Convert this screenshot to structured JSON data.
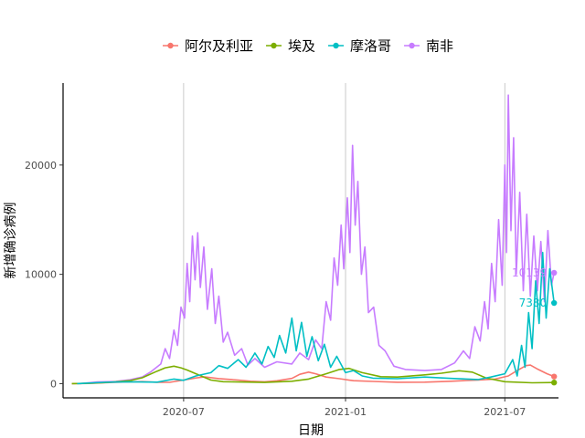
{
  "chart_data": {
    "type": "line",
    "xlabel": "日期",
    "ylabel": "新增确诊病例",
    "x_ticks": [
      "2020-07",
      "2021-01",
      "2021-07"
    ],
    "y_ticks": [
      0,
      10000,
      20000
    ],
    "xlim": [
      "2020-02-15",
      "2021-08-31"
    ],
    "ylim": [
      -1300,
      27500
    ],
    "vertical_gridlines_at": [
      "2020-07-01",
      "2021-01-01",
      "2021-07-01"
    ],
    "legend_position": "top",
    "series": [
      {
        "name": "阿尔及利亚",
        "color": "#F8766D",
        "end_label": "",
        "points": [
          [
            "2020-02-25",
            0
          ],
          [
            "2020-03-15",
            20
          ],
          [
            "2020-04-01",
            80
          ],
          [
            "2020-04-15",
            120
          ],
          [
            "2020-05-01",
            170
          ],
          [
            "2020-05-15",
            190
          ],
          [
            "2020-06-01",
            130
          ],
          [
            "2020-06-15",
            120
          ],
          [
            "2020-07-01",
            330
          ],
          [
            "2020-07-15",
            520
          ],
          [
            "2020-07-25",
            620
          ],
          [
            "2020-08-10",
            460
          ],
          [
            "2020-09-01",
            330
          ],
          [
            "2020-09-15",
            220
          ],
          [
            "2020-10-01",
            170
          ],
          [
            "2020-10-15",
            260
          ],
          [
            "2020-11-01",
            480
          ],
          [
            "2020-11-10",
            850
          ],
          [
            "2020-11-20",
            1050
          ],
          [
            "2020-11-28",
            900
          ],
          [
            "2020-12-10",
            600
          ],
          [
            "2020-12-25",
            450
          ],
          [
            "2021-01-10",
            270
          ],
          [
            "2021-02-01",
            200
          ],
          [
            "2021-03-01",
            130
          ],
          [
            "2021-04-01",
            140
          ],
          [
            "2021-05-01",
            220
          ],
          [
            "2021-06-01",
            340
          ],
          [
            "2021-06-20",
            420
          ],
          [
            "2021-07-05",
            700
          ],
          [
            "2021-07-15",
            1200
          ],
          [
            "2021-07-25",
            1650
          ],
          [
            "2021-07-30",
            1700
          ],
          [
            "2021-08-08",
            1300
          ],
          [
            "2021-08-18",
            900
          ],
          [
            "2021-08-26",
            650
          ]
        ]
      },
      {
        "name": "埃及",
        "color": "#7CAE00",
        "end_label": "",
        "points": [
          [
            "2020-02-25",
            0
          ],
          [
            "2020-03-15",
            30
          ],
          [
            "2020-04-01",
            90
          ],
          [
            "2020-04-15",
            170
          ],
          [
            "2020-05-01",
            280
          ],
          [
            "2020-05-15",
            540
          ],
          [
            "2020-06-01",
            1150
          ],
          [
            "2020-06-10",
            1450
          ],
          [
            "2020-06-20",
            1600
          ],
          [
            "2020-06-28",
            1450
          ],
          [
            "2020-07-05",
            1250
          ],
          [
            "2020-07-15",
            900
          ],
          [
            "2020-08-01",
            330
          ],
          [
            "2020-08-15",
            180
          ],
          [
            "2020-09-01",
            150
          ],
          [
            "2020-10-01",
            110
          ],
          [
            "2020-11-01",
            220
          ],
          [
            "2020-11-20",
            420
          ],
          [
            "2020-12-10",
            900
          ],
          [
            "2020-12-25",
            1300
          ],
          [
            "2021-01-05",
            1400
          ],
          [
            "2021-01-20",
            1000
          ],
          [
            "2021-02-10",
            640
          ],
          [
            "2021-03-01",
            600
          ],
          [
            "2021-04-01",
            800
          ],
          [
            "2021-04-20",
            950
          ],
          [
            "2021-05-10",
            1180
          ],
          [
            "2021-05-25",
            1050
          ],
          [
            "2021-06-10",
            500
          ],
          [
            "2021-07-01",
            180
          ],
          [
            "2021-08-01",
            80
          ],
          [
            "2021-08-26",
            100
          ]
        ]
      },
      {
        "name": "摩洛哥",
        "color": "#00BFC4",
        "end_label": "7380",
        "points": [
          [
            "2020-03-02",
            0
          ],
          [
            "2020-04-01",
            120
          ],
          [
            "2020-05-01",
            170
          ],
          [
            "2020-06-01",
            140
          ],
          [
            "2020-06-20",
            420
          ],
          [
            "2020-07-01",
            300
          ],
          [
            "2020-07-15",
            700
          ],
          [
            "2020-08-01",
            1000
          ],
          [
            "2020-08-10",
            1650
          ],
          [
            "2020-08-20",
            1400
          ],
          [
            "2020-09-01",
            2200
          ],
          [
            "2020-09-10",
            1500
          ],
          [
            "2020-09-20",
            2800
          ],
          [
            "2020-09-28",
            1800
          ],
          [
            "2020-10-05",
            3400
          ],
          [
            "2020-10-12",
            2400
          ],
          [
            "2020-10-18",
            4400
          ],
          [
            "2020-10-25",
            2800
          ],
          [
            "2020-11-01",
            6000
          ],
          [
            "2020-11-06",
            3000
          ],
          [
            "2020-11-12",
            5600
          ],
          [
            "2020-11-18",
            2500
          ],
          [
            "2020-11-24",
            4300
          ],
          [
            "2020-12-01",
            2100
          ],
          [
            "2020-12-08",
            3600
          ],
          [
            "2020-12-15",
            1500
          ],
          [
            "2020-12-22",
            2500
          ],
          [
            "2021-01-01",
            1000
          ],
          [
            "2021-01-10",
            1200
          ],
          [
            "2021-01-20",
            700
          ],
          [
            "2021-02-01",
            500
          ],
          [
            "2021-03-01",
            450
          ],
          [
            "2021-04-01",
            600
          ],
          [
            "2021-05-01",
            480
          ],
          [
            "2021-06-01",
            380
          ],
          [
            "2021-06-15",
            600
          ],
          [
            "2021-07-01",
            900
          ],
          [
            "2021-07-10",
            2200
          ],
          [
            "2021-07-15",
            700
          ],
          [
            "2021-07-20",
            3500
          ],
          [
            "2021-07-24",
            1500
          ],
          [
            "2021-07-28",
            6500
          ],
          [
            "2021-08-01",
            3200
          ],
          [
            "2021-08-05",
            9400
          ],
          [
            "2021-08-09",
            5500
          ],
          [
            "2021-08-13",
            12000
          ],
          [
            "2021-08-17",
            6000
          ],
          [
            "2021-08-21",
            10500
          ],
          [
            "2021-08-26",
            7380
          ]
        ]
      },
      {
        "name": "南非",
        "color": "#C77CFF",
        "end_label": "10139",
        "points": [
          [
            "2020-03-05",
            0
          ],
          [
            "2020-03-25",
            150
          ],
          [
            "2020-04-15",
            200
          ],
          [
            "2020-05-01",
            350
          ],
          [
            "2020-05-15",
            600
          ],
          [
            "2020-05-25",
            1100
          ],
          [
            "2020-06-05",
            1800
          ],
          [
            "2020-06-10",
            3200
          ],
          [
            "2020-06-15",
            2300
          ],
          [
            "2020-06-20",
            4900
          ],
          [
            "2020-06-24",
            3500
          ],
          [
            "2020-06-28",
            7000
          ],
          [
            "2020-07-02",
            6000
          ],
          [
            "2020-07-05",
            11000
          ],
          [
            "2020-07-08",
            7500
          ],
          [
            "2020-07-11",
            13500
          ],
          [
            "2020-07-14",
            9500
          ],
          [
            "2020-07-17",
            13800
          ],
          [
            "2020-07-20",
            8800
          ],
          [
            "2020-07-24",
            12500
          ],
          [
            "2020-07-28",
            6800
          ],
          [
            "2020-08-02",
            10500
          ],
          [
            "2020-08-06",
            5500
          ],
          [
            "2020-08-10",
            8000
          ],
          [
            "2020-08-15",
            3800
          ],
          [
            "2020-08-20",
            4700
          ],
          [
            "2020-08-28",
            2600
          ],
          [
            "2020-09-05",
            3200
          ],
          [
            "2020-09-12",
            1700
          ],
          [
            "2020-09-20",
            2300
          ],
          [
            "2020-10-01",
            1500
          ],
          [
            "2020-10-15",
            2000
          ],
          [
            "2020-11-01",
            1800
          ],
          [
            "2020-11-10",
            2800
          ],
          [
            "2020-11-20",
            2200
          ],
          [
            "2020-11-28",
            4000
          ],
          [
            "2020-12-05",
            3200
          ],
          [
            "2020-12-10",
            7500
          ],
          [
            "2020-12-15",
            5800
          ],
          [
            "2020-12-19",
            11500
          ],
          [
            "2020-12-23",
            9000
          ],
          [
            "2020-12-27",
            14500
          ],
          [
            "2020-12-30",
            10500
          ],
          [
            "2021-01-03",
            17000
          ],
          [
            "2021-01-06",
            12000
          ],
          [
            "2021-01-09",
            21800
          ],
          [
            "2021-01-12",
            14500
          ],
          [
            "2021-01-15",
            18500
          ],
          [
            "2021-01-19",
            10000
          ],
          [
            "2021-01-23",
            12500
          ],
          [
            "2021-01-27",
            6500
          ],
          [
            "2021-02-02",
            7000
          ],
          [
            "2021-02-08",
            3500
          ],
          [
            "2021-02-15",
            3000
          ],
          [
            "2021-02-25",
            1600
          ],
          [
            "2021-03-10",
            1300
          ],
          [
            "2021-04-01",
            1200
          ],
          [
            "2021-04-20",
            1300
          ],
          [
            "2021-05-05",
            1900
          ],
          [
            "2021-05-15",
            3000
          ],
          [
            "2021-05-22",
            2300
          ],
          [
            "2021-05-28",
            5200
          ],
          [
            "2021-06-03",
            3900
          ],
          [
            "2021-06-08",
            7500
          ],
          [
            "2021-06-12",
            5000
          ],
          [
            "2021-06-16",
            11000
          ],
          [
            "2021-06-20",
            7500
          ],
          [
            "2021-06-24",
            15000
          ],
          [
            "2021-06-28",
            9000
          ],
          [
            "2021-07-01",
            20000
          ],
          [
            "2021-07-03",
            12000
          ],
          [
            "2021-07-05",
            26400
          ],
          [
            "2021-07-08",
            14000
          ],
          [
            "2021-07-11",
            22500
          ],
          [
            "2021-07-14",
            10000
          ],
          [
            "2021-07-18",
            17500
          ],
          [
            "2021-07-22",
            8500
          ],
          [
            "2021-07-26",
            15500
          ],
          [
            "2021-07-30",
            8000
          ],
          [
            "2021-08-03",
            13500
          ],
          [
            "2021-08-07",
            8500
          ],
          [
            "2021-08-11",
            13000
          ],
          [
            "2021-08-15",
            7500
          ],
          [
            "2021-08-19",
            14000
          ],
          [
            "2021-08-23",
            9000
          ],
          [
            "2021-08-26",
            10139
          ]
        ]
      }
    ]
  }
}
